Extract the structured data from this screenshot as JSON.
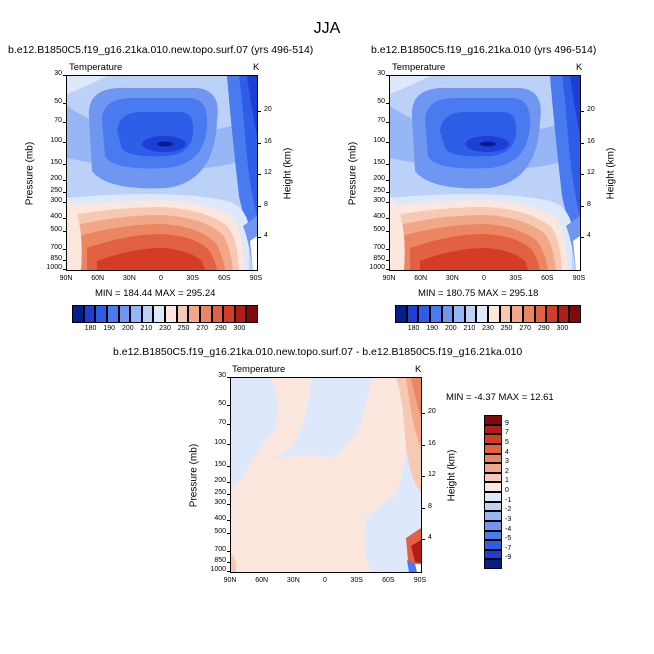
{
  "suptitle": "JJA",
  "colors": {
    "cold_scale": [
      "#051e8c",
      "#1c3fd6",
      "#2e5ee8",
      "#4a7af0",
      "#6f97f2",
      "#97b6f5",
      "#bcd1f7",
      "#dde8fb",
      "#fbe7dd",
      "#f7c9b3",
      "#f2a888",
      "#ec8561",
      "#e26142",
      "#d43c28",
      "#b51c18",
      "#800a0a"
    ],
    "diff_scale": [
      "#051e8c",
      "#1c3fd6",
      "#2e5ee8",
      "#4a7af0",
      "#6f97f2",
      "#97b6f5",
      "#bcd1f7",
      "#dde8fb",
      "#fbe7dd",
      "#f7c9b3",
      "#f2a888",
      "#ec8561",
      "#e26142",
      "#d43c28",
      "#b51c18",
      "#800a0a"
    ]
  },
  "panels": [
    {
      "title": "b.e12.B1850C5.f19_g16.21ka.010.new.topo.surf.07 (yrs 496-514)",
      "left_label": "Temperature",
      "right_label": "K",
      "ylabel": "Pressure (mb)",
      "y2label": "Height (km)",
      "minmax": "MIN = 184.44   MAX = 295.24"
    },
    {
      "title": "b.e12.B1850C5.f19_g16.21ka.010 (yrs 496-514)",
      "left_label": "Temperature",
      "right_label": "K",
      "ylabel": "Pressure (mb)",
      "y2label": "Height (km)",
      "minmax": "MIN = 180.75   MAX = 295.18"
    },
    {
      "title": "b.e12.B1850C5.f19_g16.21ka.010.new.topo.surf.07 - b.e12.B1850C5.f19_g16.21ka.010",
      "left_label": "Temperature",
      "right_label": "K",
      "ylabel": "Pressure (mb)",
      "y2label": "Height (km)",
      "minmax": "MIN =  -4.37   MAX = 12.61"
    }
  ],
  "pressure_ticks": [
    "30",
    "50",
    "70",
    "100",
    "150",
    "200",
    "250",
    "300",
    "400",
    "500",
    "700",
    "850",
    "1000"
  ],
  "pressure_ticks_diff": [
    "30",
    "50",
    "70",
    "100",
    "150",
    "200",
    "250",
    "300",
    "400",
    "500",
    "700",
    "850",
    "1000"
  ],
  "height_ticks": [
    "20",
    "16",
    "12",
    "8",
    "4"
  ],
  "lat_ticks": [
    "90N",
    "60N",
    "30N",
    "0",
    "30S",
    "60S",
    "90S"
  ],
  "colorbar_horizontal_labels": [
    "180",
    "190",
    "200",
    "210",
    "230",
    "250",
    "270",
    "290",
    "300"
  ],
  "colorbar_vertical_labels": [
    "9",
    "7",
    "5",
    "4",
    "3",
    "2",
    "1",
    "0",
    "-1",
    "-2",
    "-3",
    "-4",
    "-5",
    "-7",
    "-9"
  ],
  "chart_data": [
    {
      "type": "heatmap",
      "title": "b.e12.B1850C5.f19_g16.21ka.010.new.topo.surf.07 (yrs 496-514)",
      "xlabel": "",
      "ylabel": "Pressure (mb)",
      "y2label": "Height (km)",
      "x_ticks": [
        "90N",
        "60N",
        "30N",
        "0",
        "30S",
        "60S",
        "90S"
      ],
      "y_ticks": [
        "30",
        "50",
        "70",
        "100",
        "150",
        "200",
        "250",
        "300",
        "400",
        "500",
        "700",
        "850",
        "1000"
      ],
      "y2_ticks": [
        "20",
        "16",
        "12",
        "8",
        "4"
      ],
      "levels": [
        180,
        190,
        200,
        210,
        230,
        250,
        270,
        290,
        300
      ],
      "min": 184.44,
      "max": 295.24,
      "units": "K"
    },
    {
      "type": "heatmap",
      "title": "b.e12.B1850C5.f19_g16.21ka.010 (yrs 496-514)",
      "xlabel": "",
      "ylabel": "Pressure (mb)",
      "y2label": "Height (km)",
      "x_ticks": [
        "90N",
        "60N",
        "30N",
        "0",
        "30S",
        "60S",
        "90S"
      ],
      "y_ticks": [
        "30",
        "50",
        "70",
        "100",
        "150",
        "200",
        "250",
        "300",
        "400",
        "500",
        "700",
        "850",
        "1000"
      ],
      "y2_ticks": [
        "20",
        "16",
        "12",
        "8",
        "4"
      ],
      "levels": [
        180,
        190,
        200,
        210,
        230,
        250,
        270,
        290,
        300
      ],
      "min": 180.75,
      "max": 295.18,
      "units": "K"
    },
    {
      "type": "heatmap",
      "title": "b.e12.B1850C5.f19_g16.21ka.010.new.topo.surf.07 - b.e12.B1850C5.f19_g16.21ka.010",
      "xlabel": "",
      "ylabel": "Pressure (mb)",
      "y2label": "Height (km)",
      "x_ticks": [
        "90N",
        "60N",
        "30N",
        "0",
        "30S",
        "60S",
        "90S"
      ],
      "y_ticks": [
        "30",
        "50",
        "70",
        "100",
        "150",
        "200",
        "250",
        "300",
        "400",
        "500",
        "700",
        "850",
        "1000"
      ],
      "y2_ticks": [
        "20",
        "16",
        "12",
        "8",
        "4"
      ],
      "levels": [
        -9,
        -7,
        -5,
        -4,
        -3,
        -2,
        -1,
        0,
        1,
        2,
        3,
        4,
        5,
        7,
        9
      ],
      "min": -4.37,
      "max": 12.61,
      "units": "K"
    }
  ]
}
